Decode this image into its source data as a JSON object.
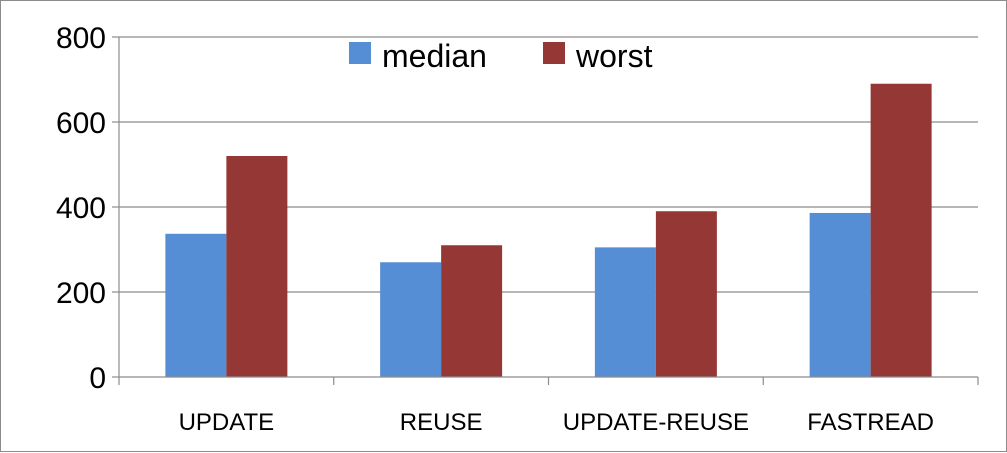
{
  "chart_data": {
    "type": "bar",
    "categories": [
      "UPDATE",
      "REUSE",
      "UPDATE-REUSE",
      "FASTREAD"
    ],
    "series": [
      {
        "name": "median",
        "color": "#558ed5",
        "values": [
          337,
          270,
          305,
          386
        ]
      },
      {
        "name": "worst",
        "color": "#953735",
        "values": [
          520,
          310,
          390,
          690
        ]
      }
    ],
    "ylim": [
      0,
      800
    ],
    "yticks": [
      0,
      200,
      400,
      600,
      800
    ],
    "title": "",
    "xlabel": "",
    "ylabel": "",
    "grid": true,
    "legend_position": "top-center"
  }
}
